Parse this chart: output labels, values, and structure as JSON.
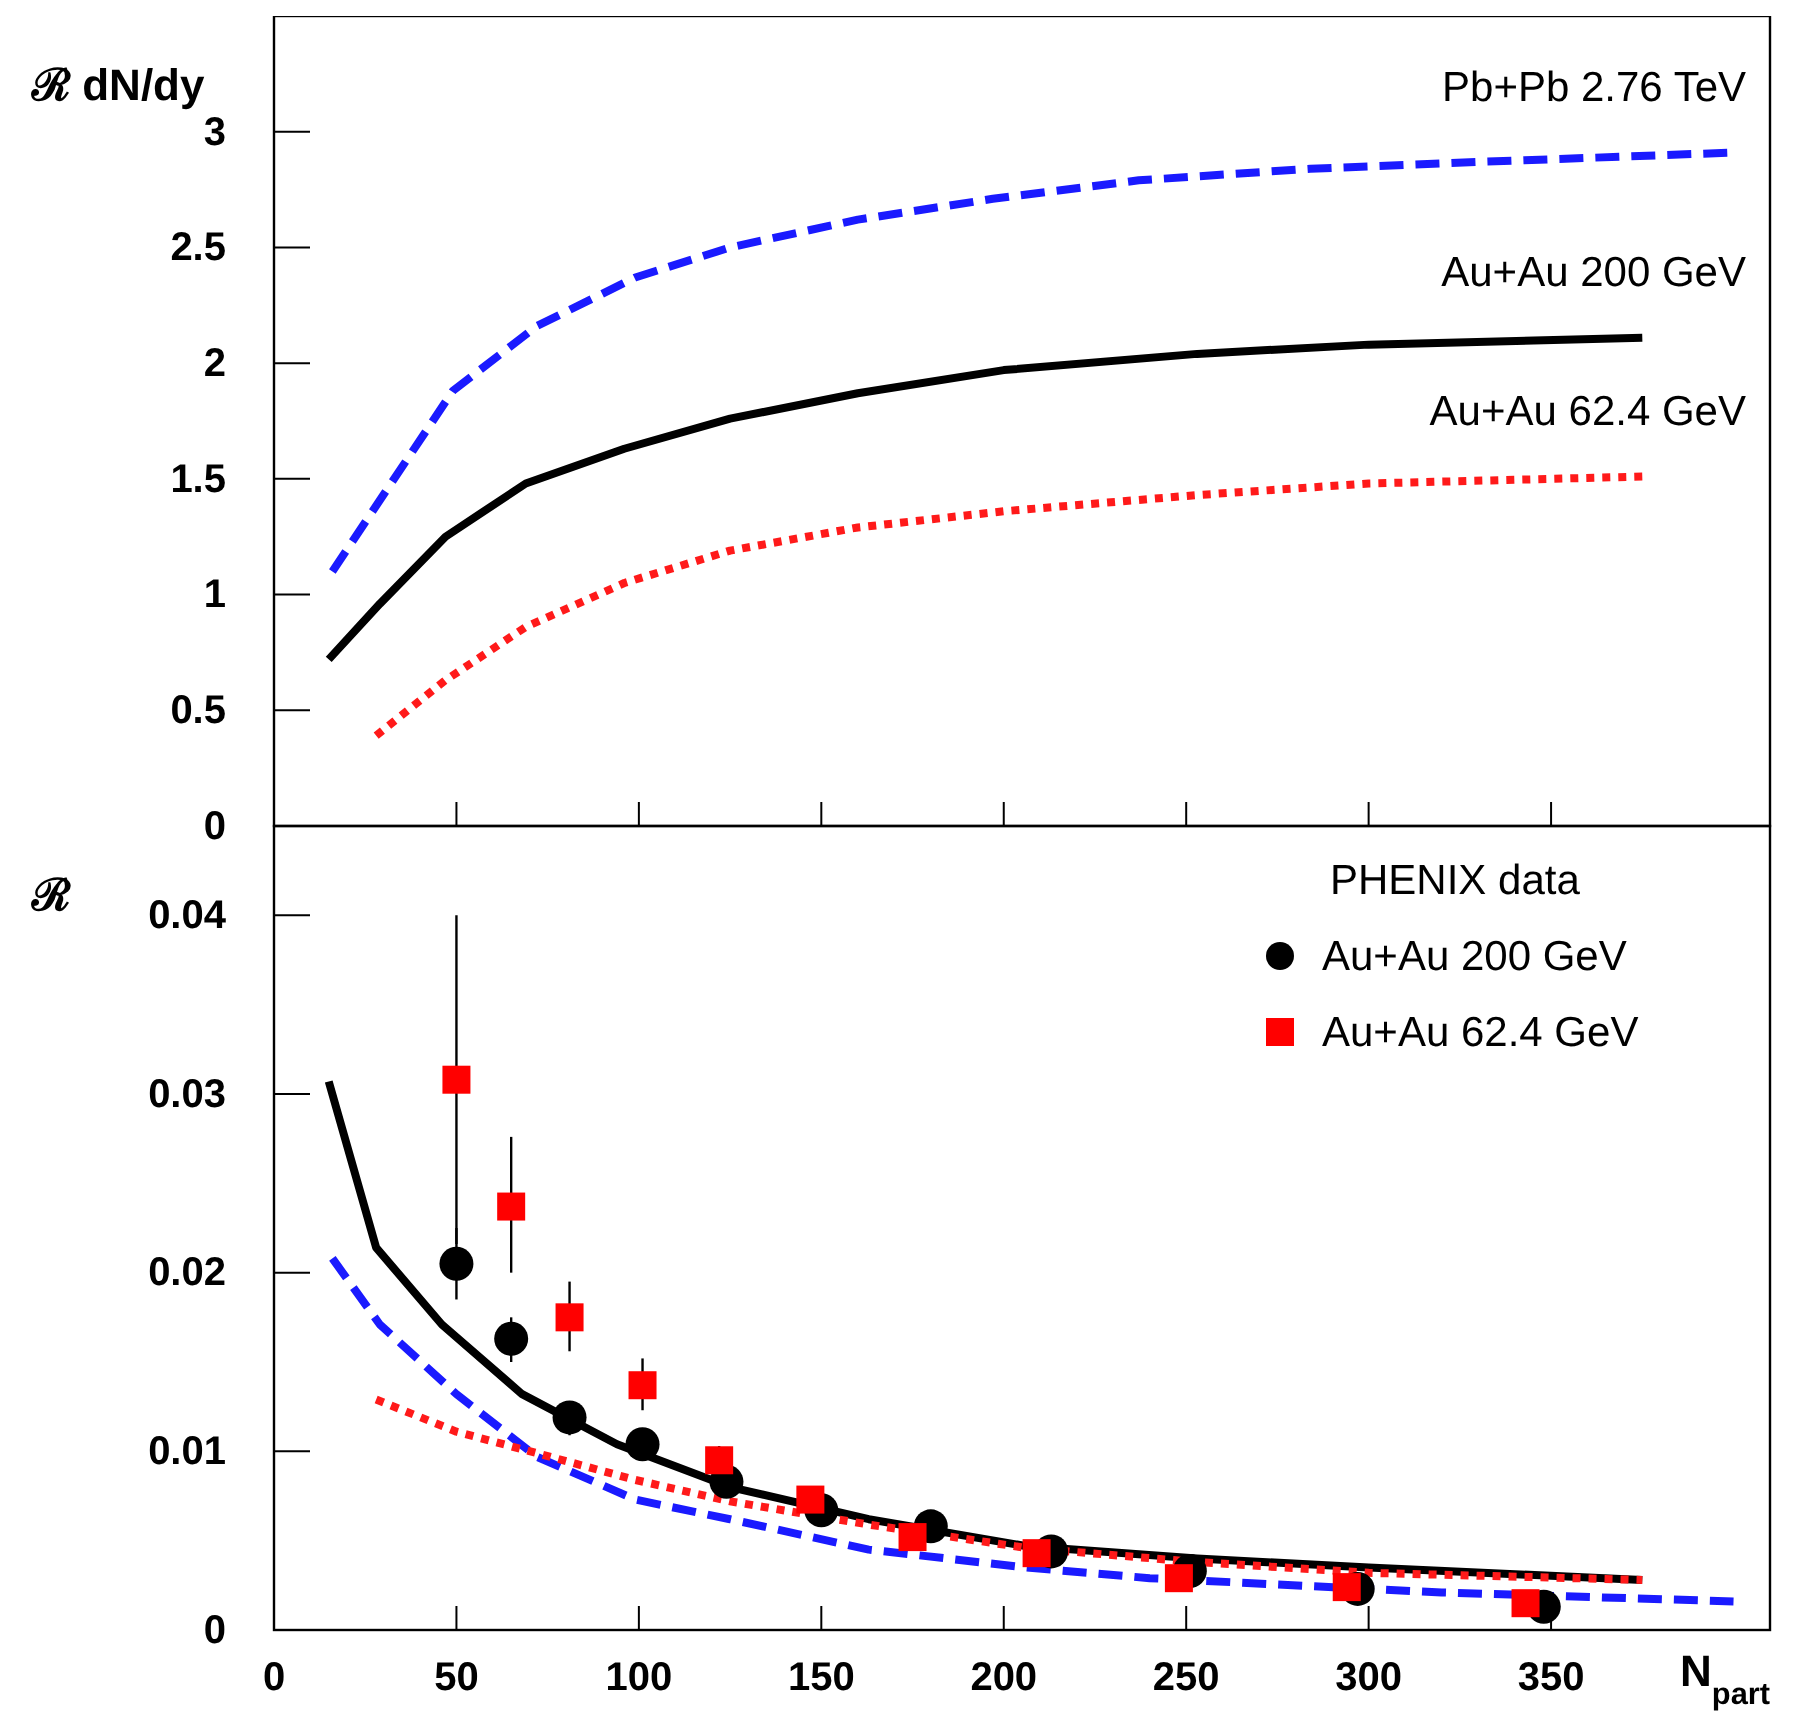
{
  "chart_data": [
    {
      "type": "line",
      "ylabel": "ℛ dN/dy",
      "xlim": [
        0,
        410
      ],
      "ylim": [
        0,
        3.5
      ],
      "xticks": [
        0,
        50,
        100,
        150,
        200,
        250,
        300,
        350
      ],
      "yticks": [
        0,
        0.5,
        1,
        1.5,
        2,
        2.5,
        3
      ],
      "tick_labels": "y",
      "grid": false,
      "legend": false,
      "series": [
        {
          "name": "Pb+Pb 2.76 TeV",
          "color": "#1a1aff",
          "line_style": "dashed",
          "x": [
            16,
            49,
            72,
            99,
            125,
            160,
            197,
            237,
            284,
            331,
            400
          ],
          "values": [
            1.1,
            1.88,
            2.16,
            2.37,
            2.5,
            2.62,
            2.71,
            2.79,
            2.84,
            2.87,
            2.91
          ]
        },
        {
          "name": "Au+Au 200 GeV",
          "color": "#000000",
          "line_style": "solid",
          "x": [
            15,
            29,
            47,
            69,
            96,
            125,
            160,
            200,
            253,
            300,
            375
          ],
          "values": [
            0.72,
            0.96,
            1.25,
            1.48,
            1.63,
            1.76,
            1.87,
            1.97,
            2.04,
            2.08,
            2.11
          ]
        },
        {
          "name": "Au+Au 62.4 GeV",
          "color": "#ff1a1a",
          "line_style": "dotted",
          "x": [
            28,
            47,
            69,
            96,
            125,
            160,
            200,
            253,
            300,
            375
          ],
          "values": [
            0.39,
            0.63,
            0.86,
            1.05,
            1.19,
            1.29,
            1.36,
            1.43,
            1.48,
            1.51
          ]
        }
      ]
    },
    {
      "type": "line",
      "ylabel": "ℛ",
      "xlabel": "N$_{part}$",
      "xlim": [
        0,
        410
      ],
      "ylim": [
        0,
        0.045
      ],
      "xticks": [
        0,
        50,
        100,
        150,
        200,
        250,
        300,
        350
      ],
      "yticks": [
        0,
        0.01,
        0.02,
        0.03,
        0.04
      ],
      "grid": false,
      "legend": "top right",
      "legend_title": "PHENIX data",
      "series": [
        {
          "color": "#000000",
          "line_style": "solid",
          "x": [
            15,
            28,
            46,
            68,
            94,
            125,
            163,
            206,
            253,
            300,
            375
          ],
          "values": [
            0.0307,
            0.0214,
            0.0171,
            0.0132,
            0.0104,
            0.008,
            0.0062,
            0.0047,
            0.004,
            0.0035,
            0.0028
          ]
        },
        {
          "color": "#1a1aff",
          "line_style": "dashed",
          "x": [
            16,
            29,
            50,
            72,
            99,
            125,
            163,
            206,
            240,
            320,
            400
          ],
          "values": [
            0.0208,
            0.0171,
            0.0132,
            0.0097,
            0.0073,
            0.0062,
            0.0045,
            0.0035,
            0.0029,
            0.0021,
            0.0016
          ]
        },
        {
          "color": "#ff1a1a",
          "line_style": "dotted",
          "x": [
            28,
            50,
            72,
            99,
            125,
            163,
            206,
            253,
            300,
            375
          ],
          "values": [
            0.0129,
            0.0111,
            0.0099,
            0.0084,
            0.0072,
            0.0059,
            0.0046,
            0.0038,
            0.0032,
            0.0028
          ]
        },
        {
          "type": "scatter",
          "name": "Au+Au 200 GeV",
          "color": "#000000",
          "marker": "circle",
          "x": [
            50,
            65,
            81,
            101,
            124,
            150,
            180,
            213,
            251,
            297,
            348
          ],
          "values": [
            0.0205,
            0.0163,
            0.0119,
            0.0104,
            0.0083,
            0.0067,
            0.0058,
            0.0044,
            0.0033,
            0.0023,
            0.0013
          ],
          "errors": [
            [
              0.0185,
              0.0225
            ],
            [
              0.015,
              0.0175
            ],
            [
              0.0109,
              0.0126
            ],
            [
              0.0095,
              0.0111
            ],
            null,
            null,
            null,
            null,
            null,
            null,
            null
          ]
        },
        {
          "type": "scatter",
          "name": "Au+Au 62.4 GeV",
          "color": "#ff0000",
          "marker": "square",
          "x": [
            50,
            65,
            81,
            101,
            122,
            147,
            175,
            209,
            248,
            294,
            343
          ],
          "values": [
            0.0308,
            0.0237,
            0.0175,
            0.0137,
            0.0095,
            0.0073,
            0.0052,
            0.0043,
            0.0029,
            0.0024,
            0.0015
          ],
          "errors": [
            [
              0.0216,
              0.04
            ],
            [
              0.02,
              0.0276
            ],
            [
              0.0156,
              0.0195
            ],
            [
              0.0123,
              0.0152
            ],
            [
              0.0088,
              0.0103
            ],
            null,
            null,
            null,
            null,
            null,
            null
          ]
        }
      ]
    }
  ]
}
